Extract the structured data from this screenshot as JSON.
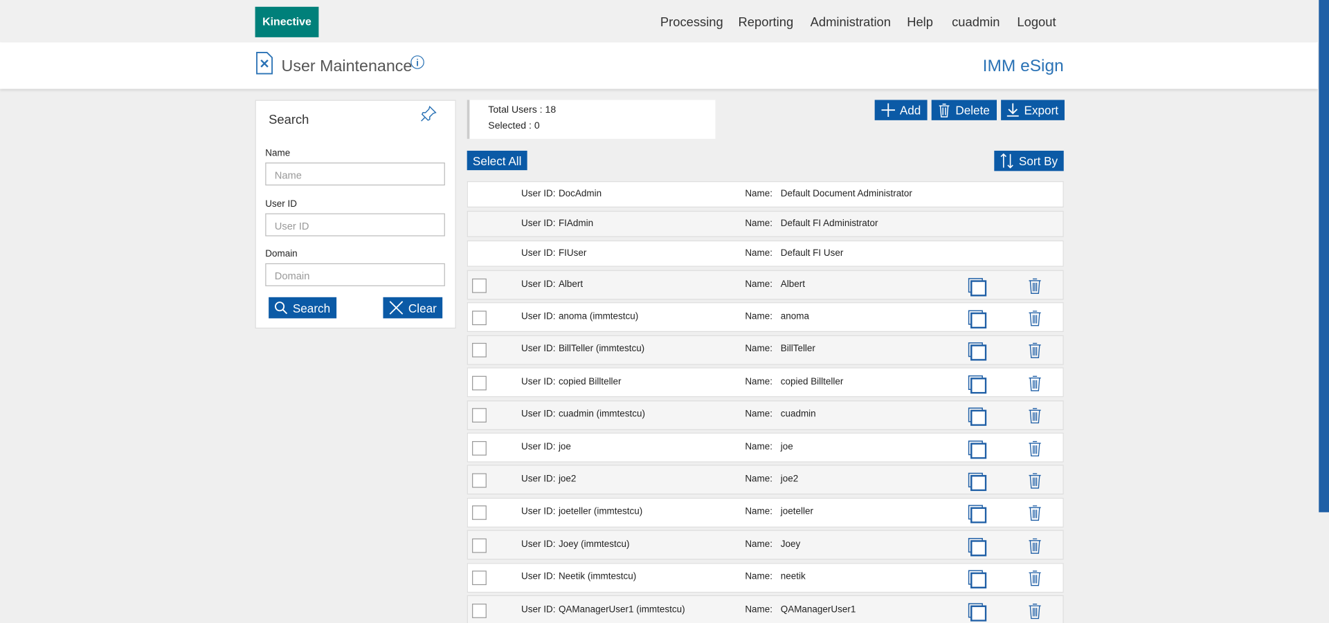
{
  "nav": {
    "brand": "Kinective",
    "items": [
      "Processing",
      "Reporting",
      "Administration",
      "Help",
      "cuadmin",
      "Logout"
    ]
  },
  "header": {
    "title": "User Maintenance",
    "product": "IMM eSign"
  },
  "search": {
    "title": "Search",
    "fields": [
      {
        "label": "Name",
        "placeholder": "Name"
      },
      {
        "label": "User ID",
        "placeholder": "User ID"
      },
      {
        "label": "Domain",
        "placeholder": "Domain"
      }
    ],
    "search_button": "Search",
    "clear_button": "Clear"
  },
  "summary": {
    "total_label": "Total Users :",
    "total": 18,
    "selected_label": "Selected :",
    "selected": 0
  },
  "toolbar": {
    "add": "Add",
    "delete": "Delete",
    "export": "Export",
    "select_all": "Select All",
    "sort_by": "Sort By"
  },
  "row_labels": {
    "user_id": "User ID:",
    "name": "Name:"
  },
  "default_users": [
    {
      "user_id": "DocAdmin",
      "name": "Default Document Administrator"
    },
    {
      "user_id": "FIAdmin",
      "name": "Default FI Administrator"
    },
    {
      "user_id": "FIUser",
      "name": "Default FI User"
    }
  ],
  "users": [
    {
      "user_id": "Albert",
      "name": "Albert"
    },
    {
      "user_id": "anoma (immtestcu)",
      "name": "anoma"
    },
    {
      "user_id": "BillTeller (immtestcu)",
      "name": "BillTeller"
    },
    {
      "user_id": "copied Billteller",
      "name": "copied Billteller"
    },
    {
      "user_id": "cuadmin (immtestcu)",
      "name": "cuadmin"
    },
    {
      "user_id": "joe",
      "name": "joe"
    },
    {
      "user_id": "joe2",
      "name": "joe2"
    },
    {
      "user_id": "joeteller (immtestcu)",
      "name": "joeteller"
    },
    {
      "user_id": "Joey (immtestcu)",
      "name": "Joey"
    },
    {
      "user_id": "Neetik (immtestcu)",
      "name": "neetik"
    },
    {
      "user_id": "QAManagerUser1 (immtestcu)",
      "name": "QAManagerUser1"
    }
  ]
}
